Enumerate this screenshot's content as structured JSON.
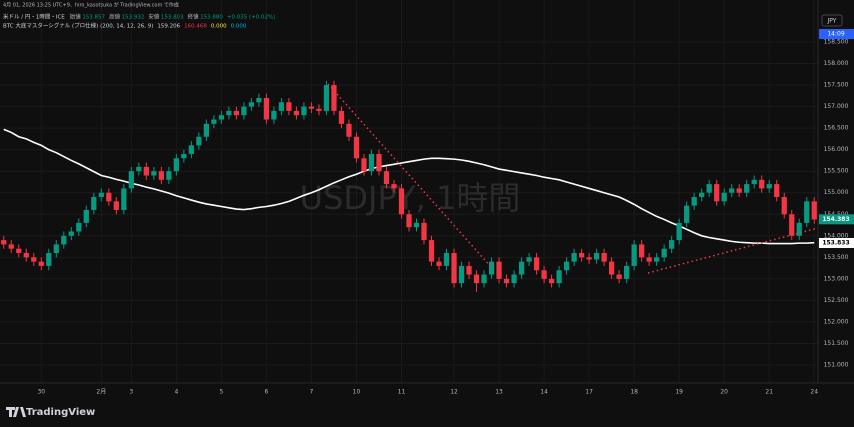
{
  "chart_data": {
    "type": "candlestick",
    "header": "4月 01, 2026 13:25 UTC+9、hiro_kasotsuka が TradingView.com で作成",
    "legend": {
      "symbol": "米ドル / 円・1時間・ICE",
      "items": [
        {
          "label": "始値",
          "value": "153.857"
        },
        {
          "label": "高値",
          "value": "153.932"
        },
        {
          "label": "安値",
          "value": "153.803"
        },
        {
          "label": "終値",
          "value": "153.880"
        }
      ],
      "change": "+0.035 (+0.02%)"
    },
    "indicator": {
      "name": "BTC 大底マスターシグナル (プロ仕様) (200, 14, 12, 26, 9)",
      "values": [
        "159.206",
        "160.468",
        "0.000",
        "0.000"
      ]
    },
    "watermark": "USDJPY, 1時間",
    "currency": "JPY",
    "countdown": "14:09",
    "brand": "TradingView",
    "up_color": "#089981",
    "down_color": "#f23645",
    "ylim": [
      150.582,
      159.475
    ],
    "yticks": [
      {
        "value": 151,
        "label": "151.000"
      },
      {
        "value": 151.5,
        "label": "151.500"
      },
      {
        "value": 152,
        "label": "152.000"
      },
      {
        "value": 152.5,
        "label": "152.500"
      },
      {
        "value": 153,
        "label": "153.000"
      },
      {
        "value": 153.5,
        "label": "153.500"
      },
      {
        "value": 154,
        "label": "154.000"
      },
      {
        "value": 154.5,
        "label": "154.500"
      },
      {
        "value": 155,
        "label": "155.000"
      },
      {
        "value": 155.5,
        "label": "155.500"
      },
      {
        "value": 156,
        "label": "156.000"
      },
      {
        "value": 156.5,
        "label": "156.500"
      },
      {
        "value": 157,
        "label": "157.000"
      },
      {
        "value": 157.5,
        "label": "157.500"
      },
      {
        "value": 158,
        "label": "158.000"
      },
      {
        "value": 158.5,
        "label": "158.500"
      }
    ],
    "grid": true,
    "last_price": 154.383,
    "ma_last": 153.833,
    "categories": [
      null,
      null,
      null,
      null,
      null,
      "30",
      null,
      null,
      null,
      null,
      null,
      null,
      null,
      "2月",
      null,
      null,
      null,
      "3",
      null,
      null,
      null,
      null,
      null,
      "4",
      null,
      null,
      null,
      null,
      null,
      "5",
      null,
      null,
      null,
      null,
      null,
      "6",
      null,
      null,
      null,
      null,
      null,
      "7",
      null,
      null,
      null,
      null,
      null,
      "10",
      null,
      null,
      null,
      null,
      null,
      "11",
      null,
      null,
      null,
      null,
      null,
      null,
      "12",
      null,
      null,
      null,
      null,
      null,
      "13",
      null,
      null,
      null,
      null,
      null,
      "14",
      null,
      null,
      null,
      null,
      null,
      "17",
      null,
      null,
      null,
      null,
      null,
      "18",
      null,
      null,
      null,
      null,
      null,
      "19",
      null,
      null,
      null,
      null,
      null,
      "20",
      null,
      null,
      null,
      null,
      null,
      "21",
      null,
      null,
      null,
      null,
      null,
      "24"
    ],
    "open": [
      153.9,
      153.8,
      153.7,
      153.6,
      153.5,
      153.4,
      153.3,
      153.6,
      153.8,
      154.0,
      154.1,
      154.3,
      154.6,
      154.9,
      155.0,
      154.8,
      154.6,
      155.1,
      155.5,
      155.6,
      155.4,
      155.5,
      155.3,
      155.5,
      155.8,
      155.9,
      156.1,
      156.3,
      156.6,
      156.7,
      156.8,
      156.9,
      156.8,
      157.0,
      157.1,
      157.2,
      156.7,
      156.9,
      157.1,
      156.9,
      156.8,
      157.0,
      156.95,
      156.9,
      157.5,
      156.9,
      156.6,
      156.3,
      155.8,
      155.5,
      155.9,
      155.5,
      155.2,
      155.1,
      154.5,
      154.2,
      154.3,
      153.9,
      153.4,
      153.3,
      153.6,
      152.9,
      153.3,
      153.1,
      152.9,
      153.1,
      153.4,
      153.0,
      152.9,
      153.1,
      153.4,
      153.5,
      153.2,
      153.0,
      152.9,
      153.2,
      153.4,
      153.6,
      153.5,
      153.45,
      153.6,
      153.4,
      153.1,
      153.0,
      153.3,
      153.8,
      153.5,
      153.4,
      153.5,
      153.7,
      153.9,
      154.3,
      154.7,
      154.9,
      155.0,
      155.2,
      154.8,
      155.0,
      155.1,
      155.0,
      155.2,
      155.3,
      155.1,
      155.2,
      154.9,
      154.5,
      154.0,
      154.3,
      154.8
    ],
    "high": [
      154.0,
      153.9,
      153.8,
      153.7,
      153.6,
      153.5,
      153.7,
      153.9,
      154.1,
      154.2,
      154.4,
      154.7,
      155.0,
      155.1,
      155.1,
      154.9,
      155.2,
      155.6,
      155.7,
      155.7,
      155.6,
      155.6,
      155.6,
      155.9,
      156.0,
      156.2,
      156.4,
      156.7,
      156.8,
      156.9,
      157.0,
      157.0,
      157.1,
      157.2,
      157.3,
      157.3,
      157.0,
      157.2,
      157.2,
      157.0,
      157.1,
      157.1,
      157.05,
      157.6,
      157.6,
      157.0,
      156.7,
      156.4,
      155.9,
      156.0,
      156.0,
      155.6,
      155.3,
      155.2,
      154.6,
      154.4,
      154.4,
      154.0,
      153.5,
      153.7,
      153.7,
      153.4,
      153.4,
      153.2,
      153.2,
      153.5,
      153.5,
      153.1,
      153.2,
      153.5,
      153.6,
      153.6,
      153.3,
      153.1,
      153.3,
      153.5,
      153.7,
      153.7,
      153.6,
      153.7,
      153.7,
      153.5,
      153.2,
      153.4,
      153.9,
      153.9,
      153.6,
      153.6,
      153.8,
      154.0,
      154.4,
      154.8,
      155.0,
      155.1,
      155.3,
      155.3,
      155.1,
      155.2,
      155.2,
      155.3,
      155.4,
      155.4,
      155.3,
      155.3,
      155.0,
      154.6,
      154.4,
      154.9,
      154.9
    ],
    "low": [
      153.7,
      153.6,
      153.5,
      153.4,
      153.3,
      153.2,
      153.2,
      153.5,
      153.7,
      153.9,
      154.0,
      154.2,
      154.5,
      154.8,
      154.7,
      154.5,
      154.5,
      155.0,
      155.4,
      155.3,
      155.3,
      155.2,
      155.2,
      155.4,
      155.7,
      155.8,
      156.0,
      156.2,
      156.5,
      156.6,
      156.7,
      156.7,
      156.7,
      156.9,
      157.0,
      156.6,
      156.6,
      156.8,
      156.8,
      156.7,
      156.7,
      156.85,
      156.8,
      156.8,
      156.8,
      156.5,
      156.2,
      155.7,
      155.4,
      155.4,
      155.4,
      155.1,
      155.0,
      154.4,
      154.1,
      154.1,
      153.8,
      153.3,
      153.2,
      153.2,
      152.8,
      152.8,
      153.0,
      152.7,
      152.8,
      153.0,
      152.9,
      152.8,
      152.8,
      153.0,
      153.3,
      153.1,
      152.9,
      152.8,
      152.8,
      153.1,
      153.3,
      153.4,
      153.35,
      153.35,
      153.3,
      153.0,
      152.9,
      152.9,
      153.2,
      153.4,
      153.3,
      153.3,
      153.4,
      153.6,
      153.8,
      154.2,
      154.6,
      154.8,
      154.9,
      154.7,
      154.7,
      154.9,
      154.9,
      154.9,
      155.1,
      155.0,
      155.0,
      154.8,
      154.4,
      153.9,
      153.9,
      154.2,
      154.28
    ],
    "close": [
      153.8,
      153.7,
      153.6,
      153.5,
      153.4,
      153.3,
      153.6,
      153.8,
      154.0,
      154.1,
      154.3,
      154.6,
      154.9,
      155.0,
      154.8,
      154.6,
      155.1,
      155.5,
      155.6,
      155.4,
      155.5,
      155.3,
      155.5,
      155.8,
      155.9,
      156.1,
      156.3,
      156.6,
      156.7,
      156.8,
      156.9,
      156.8,
      157.0,
      157.1,
      157.2,
      156.7,
      156.9,
      157.1,
      156.9,
      156.8,
      157.0,
      156.95,
      156.9,
      157.5,
      156.9,
      156.6,
      156.3,
      155.8,
      155.5,
      155.9,
      155.5,
      155.2,
      155.1,
      154.5,
      154.2,
      154.3,
      153.9,
      153.4,
      153.3,
      153.6,
      152.9,
      153.3,
      153.1,
      152.9,
      153.1,
      153.4,
      153.0,
      152.9,
      153.1,
      153.4,
      153.5,
      153.2,
      153.0,
      152.9,
      153.2,
      153.4,
      153.6,
      153.5,
      153.45,
      153.6,
      153.4,
      153.1,
      153.0,
      153.3,
      153.8,
      153.5,
      153.4,
      153.5,
      153.7,
      153.9,
      154.3,
      154.7,
      154.9,
      155.0,
      155.2,
      154.8,
      155.0,
      155.1,
      155.0,
      155.2,
      155.3,
      155.1,
      155.2,
      154.9,
      154.5,
      154.0,
      154.3,
      154.8,
      154.38
    ],
    "ma": {
      "color": "#ffffff",
      "values": [
        156.47,
        156.4,
        156.3,
        156.25,
        156.17,
        156.1,
        156.0,
        155.93,
        155.84,
        155.75,
        155.67,
        155.58,
        155.49,
        155.4,
        155.36,
        155.31,
        155.27,
        155.22,
        155.18,
        155.13,
        155.09,
        155.04,
        154.99,
        154.93,
        154.88,
        154.83,
        154.78,
        154.74,
        154.71,
        154.68,
        154.65,
        154.62,
        154.61,
        154.63,
        154.66,
        154.68,
        154.71,
        154.75,
        154.8,
        154.87,
        154.94,
        155.0,
        155.07,
        155.15,
        155.23,
        155.3,
        155.37,
        155.43,
        155.5,
        155.56,
        155.6,
        155.63,
        155.66,
        155.69,
        155.72,
        155.75,
        155.78,
        155.8,
        155.8,
        155.79,
        155.78,
        155.76,
        155.73,
        155.69,
        155.65,
        155.6,
        155.55,
        155.52,
        155.49,
        155.46,
        155.43,
        155.4,
        155.36,
        155.33,
        155.3,
        155.25,
        155.2,
        155.15,
        155.1,
        155.05,
        155.0,
        154.95,
        154.9,
        154.82,
        154.73,
        154.63,
        154.54,
        154.45,
        154.38,
        154.3,
        154.23,
        154.15,
        154.07,
        154.0,
        153.96,
        153.93,
        153.9,
        153.87,
        153.85,
        153.84,
        153.83,
        153.83,
        153.82,
        153.82,
        153.82,
        153.82,
        153.83,
        153.83,
        153.84
      ]
    }
  }
}
